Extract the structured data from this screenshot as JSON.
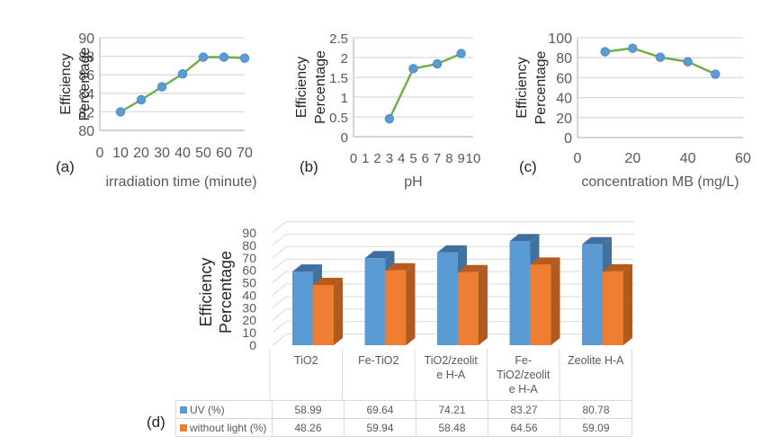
{
  "colors": {
    "line": "#70ad47",
    "marker": "#5b9bd5",
    "grid": "#d9d9d9",
    "uv": "#5b9bd5",
    "uv_side": "#41719c",
    "uv_top": "#3f6fa0",
    "without_light": "#ed7d31",
    "without_light_side": "#ae5a21",
    "without_light_top": "#b65a1e",
    "text": "#595959"
  },
  "panel_labels": {
    "a": "(a)",
    "b": "(b)",
    "c": "(c)",
    "d": "(d)"
  },
  "chart_data": [
    {
      "id": "a",
      "type": "line",
      "title": "",
      "ylabel": [
        "Efficiency",
        "Percentage"
      ],
      "xlabel": "irradiation time (minute)",
      "x": [
        10,
        20,
        30,
        40,
        50,
        60,
        70
      ],
      "values": [
        82.0,
        83.3,
        84.7,
        86.1,
        87.9,
        87.9,
        87.8
      ],
      "xlim": [
        0,
        70
      ],
      "ylim": [
        80,
        90
      ],
      "xticks": [
        0,
        10,
        20,
        30,
        40,
        50,
        60,
        70
      ],
      "yticks": [
        80,
        82,
        84,
        86,
        88,
        90
      ],
      "grid": true
    },
    {
      "id": "b",
      "type": "line",
      "title": "",
      "ylabel": [
        "Efficiency",
        "Percentage"
      ],
      "xlabel": "pH",
      "x": [
        3,
        5,
        7,
        9
      ],
      "values": [
        0.45,
        1.72,
        1.84,
        2.1
      ],
      "xlim": [
        0,
        10
      ],
      "ylim": [
        0,
        2.5
      ],
      "xticks": [
        0,
        1,
        2,
        3,
        4,
        5,
        6,
        7,
        8,
        9,
        10
      ],
      "yticks": [
        0,
        0.5,
        1,
        1.5,
        2,
        2.5
      ],
      "grid": true
    },
    {
      "id": "c",
      "type": "line",
      "title": "",
      "ylabel": [
        "Efficiency",
        "Percentage"
      ],
      "xlabel": "concentration MB (mg/L)",
      "x": [
        10,
        20,
        30,
        40,
        50
      ],
      "values": [
        86,
        89.5,
        80.5,
        76,
        63.5
      ],
      "xlim": [
        0,
        60
      ],
      "ylim": [
        0,
        100
      ],
      "xticks": [
        0,
        20,
        40,
        60
      ],
      "yticks": [
        0,
        20,
        40,
        60,
        80,
        100
      ],
      "grid": true
    },
    {
      "id": "d",
      "type": "bar",
      "title": "",
      "ylabel": [
        "Efficiency",
        "Percentage"
      ],
      "xlabel": "",
      "categories": [
        "TiO2",
        "Fe-TiO2",
        "TiO2/zeolite H-A",
        "Fe-TiO2/zeolite H-A",
        "Zeolite H-A"
      ],
      "category_display": [
        [
          "TiO2"
        ],
        [
          "Fe-TiO2"
        ],
        [
          "TiO2/zeolit",
          "e H-A"
        ],
        [
          "Fe-",
          "TiO2/zeolit",
          "e H-A"
        ],
        [
          "Zeolite H-A"
        ]
      ],
      "series": [
        {
          "name": "UV (%)",
          "values": [
            58.99,
            69.64,
            74.21,
            83.27,
            80.78
          ]
        },
        {
          "name": "without light (%)",
          "values": [
            48.26,
            59.94,
            58.48,
            64.56,
            59.09
          ]
        }
      ],
      "ylim": [
        0,
        90
      ],
      "yticks": [
        0,
        10,
        20,
        30,
        40,
        50,
        60,
        70,
        80,
        90
      ],
      "grid": true,
      "legend": "data-table-bottom",
      "data_table": {
        "rows": [
          {
            "label": "UV (%)",
            "cells": [
              "58.99",
              "69.64",
              "74.21",
              "83.27",
              "80.78"
            ]
          },
          {
            "label": "without light (%)",
            "cells": [
              "48.26",
              "59.94",
              "58.48",
              "64.56",
              "59.09"
            ]
          }
        ]
      }
    }
  ]
}
